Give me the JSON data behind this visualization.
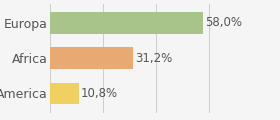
{
  "categories": [
    "Europa",
    "Africa",
    "America"
  ],
  "values": [
    58.0,
    31.2,
    10.8
  ],
  "labels": [
    "58,0%",
    "31,2%",
    "10,8%"
  ],
  "bar_colors": [
    "#a8c48a",
    "#e8aa72",
    "#f0d060"
  ],
  "xlim": [
    0,
    68
  ],
  "background_color": "#f5f5f5",
  "bar_height": 0.62,
  "label_fontsize": 8.5,
  "tick_fontsize": 9.0
}
